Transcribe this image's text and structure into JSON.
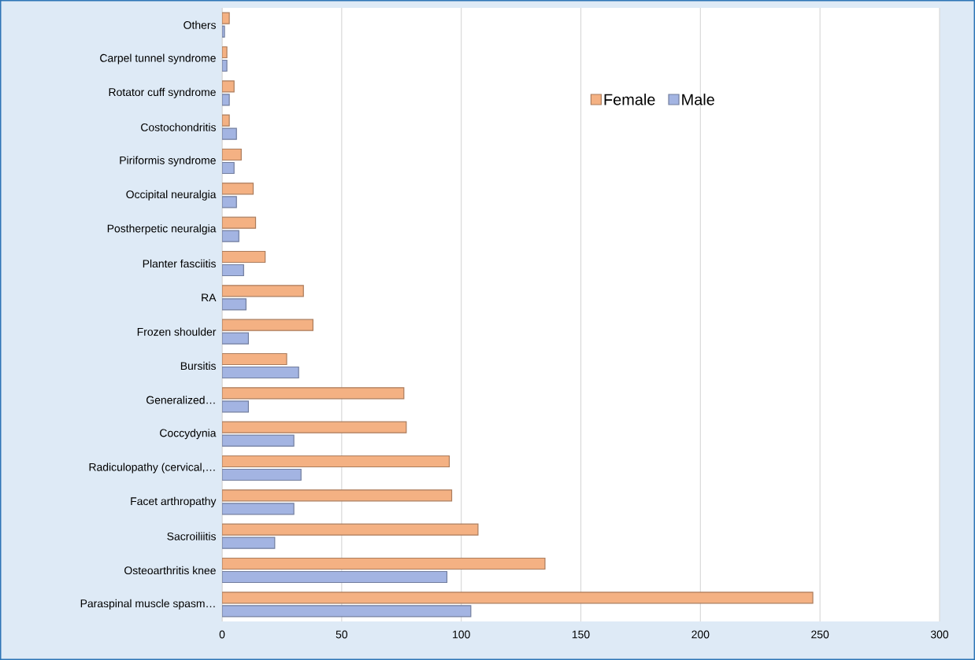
{
  "chart_data": {
    "type": "bar",
    "orientation": "horizontal",
    "categories": [
      "Others",
      "Carpel tunnel syndrome",
      "Rotator cuff syndrome",
      "Costochondritis",
      "Piriformis syndrome",
      "Occipital neuralgia",
      "Postherpetic neuralgia",
      "Planter fasciitis",
      "RA",
      "Frozen shoulder",
      "Bursitis",
      "Generalized…",
      "Coccydynia",
      "Radiculopathy (cervical,…",
      "Facet arthropathy",
      "Sacroiliitis",
      "Osteoarthritis knee",
      "Paraspinal muscle spasm…"
    ],
    "series": [
      {
        "name": "Female",
        "color": "#f4b183",
        "values": [
          3,
          2,
          5,
          3,
          8,
          13,
          14,
          18,
          34,
          38,
          27,
          76,
          77,
          95,
          96,
          107,
          135,
          247
        ]
      },
      {
        "name": "Male",
        "color": "#a3b4e2",
        "values": [
          1,
          2,
          3,
          6,
          5,
          6,
          7,
          9,
          10,
          11,
          32,
          11,
          30,
          33,
          30,
          22,
          94,
          104
        ]
      }
    ],
    "xlim": [
      0,
      300
    ],
    "xticks": [
      0,
      50,
      100,
      150,
      200,
      250,
      300
    ],
    "grid": "x",
    "legend": "top right"
  }
}
